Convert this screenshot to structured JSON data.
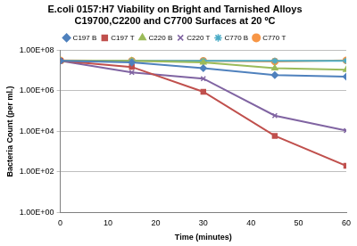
{
  "chart_data": {
    "type": "line",
    "title": [
      "E.coli 0157:H7 Viability on Bright and Tarnished Alloys",
      "C19700,C2200 and C7700 Surfaces at 20 ºC"
    ],
    "x_label": "Time (minutes)",
    "y_label": "Bacteria Count (per ml.)",
    "x": [
      0,
      15,
      30,
      45,
      60
    ],
    "series": [
      {
        "name": "C197 B",
        "color": "#4f81bd",
        "marker": "diamond",
        "values": [
          30000000,
          25000000,
          13000000,
          6000000,
          5000000
        ]
      },
      {
        "name": "C197 T",
        "color": "#c0504d",
        "marker": "square",
        "values": [
          30000000,
          15000000,
          900000,
          6000,
          200
        ]
      },
      {
        "name": "C220 B",
        "color": "#9bbb59",
        "marker": "triangle",
        "values": [
          30000000,
          30000000,
          25000000,
          13000000,
          11000000
        ]
      },
      {
        "name": "C220 T",
        "color": "#8064a2",
        "marker": "x",
        "values": [
          30000000,
          8000000,
          4000000,
          60000,
          11000
        ]
      },
      {
        "name": "C770 B",
        "color": "#4bacc6",
        "marker": "star",
        "values": [
          30000000,
          30000000,
          30000000,
          30000000,
          30000000
        ]
      },
      {
        "name": "C770 T",
        "color": "#f79646",
        "marker": "circle",
        "values": [
          32000000,
          30000000,
          30000000,
          28000000,
          32000000
        ]
      }
    ],
    "xlim": [
      0,
      60
    ],
    "xticks": [
      0,
      10,
      20,
      30,
      40,
      50,
      60
    ],
    "ylim": [
      1,
      100000000
    ],
    "yticks": [
      {
        "value": 1,
        "label": "1.00E+00"
      },
      {
        "value": 100,
        "label": "1.00E+02"
      },
      {
        "value": 10000,
        "label": "1.00E+04"
      },
      {
        "value": 1000000,
        "label": "1.00E+06"
      },
      {
        "value": 100000000,
        "label": "1.00E+08"
      }
    ],
    "log": "y",
    "grid": true,
    "legend": "top"
  }
}
